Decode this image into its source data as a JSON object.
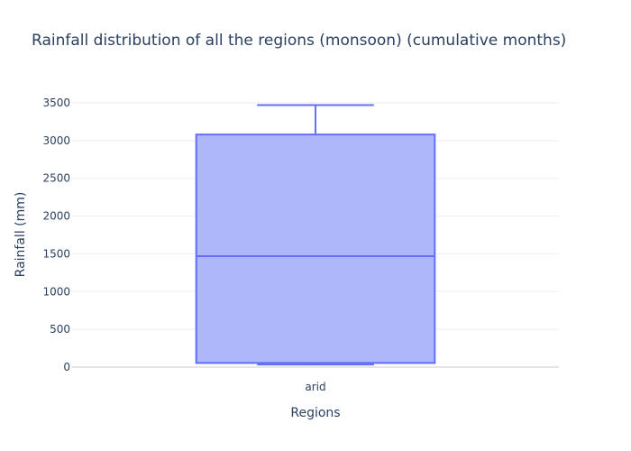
{
  "chart_data": {
    "type": "box",
    "title": "Rainfall distribution of all the regions (monsoon) (cumulative months)",
    "xlabel": "Regions",
    "ylabel": "Rainfall (mm)",
    "ylim": [
      -50,
      3500
    ],
    "yticks": [
      0,
      500,
      1000,
      1500,
      2000,
      2500,
      3000,
      3500
    ],
    "categories": [
      "arid"
    ],
    "series": [
      {
        "category": "arid",
        "min": 35,
        "q1": 55,
        "median": 1470,
        "q3": 3080,
        "max": 3470
      }
    ],
    "grid": true,
    "colors": {
      "fill": "#abb3fb",
      "line": "#636efa"
    }
  }
}
